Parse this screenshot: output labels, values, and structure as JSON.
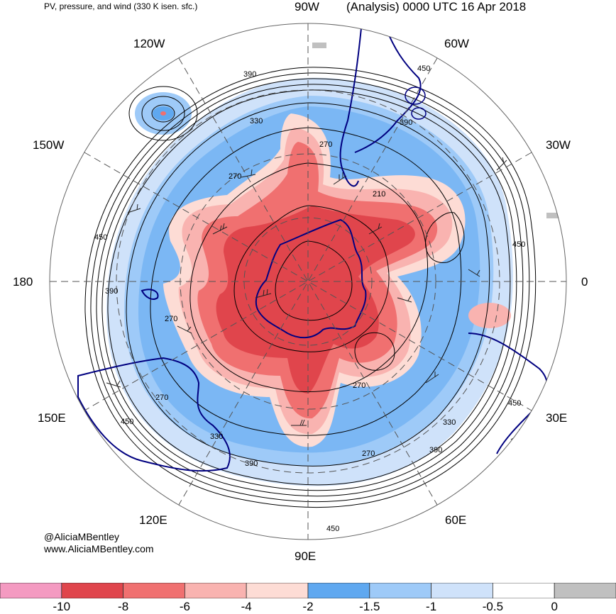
{
  "header": {
    "left_title": "PV, pressure, and wind (330 K isen. sfc.)",
    "right_title": "(Analysis) 0000 UTC 16 Apr 2018"
  },
  "longitude_labels": [
    "90W",
    "60W",
    "30W",
    "0",
    "30E",
    "60E",
    "90E",
    "120E",
    "150E",
    "180",
    "150W",
    "120W"
  ],
  "contour_labels": [
    "450",
    "390",
    "330",
    "270",
    "270",
    "210",
    "450",
    "450",
    "390",
    "270",
    "270",
    "450",
    "330",
    "390",
    "270",
    "330",
    "390",
    "450",
    "450",
    "390",
    "270"
  ],
  "credits": {
    "handle": "@AliciaMBentley",
    "website": "www.AliciaMBentley.com"
  },
  "colorbar": {
    "tick_labels": [
      "-10",
      "-8",
      "-6",
      "-4",
      "-2",
      "-1.5",
      "-1",
      "-0.5",
      "0"
    ],
    "colors": [
      "#f49ac1",
      "#e0454c",
      "#f07070",
      "#f9b3b0",
      "#fddcd5",
      "#5fa8f0",
      "#9ecaf8",
      "#cfe2fa",
      "#ffffff",
      "#c0c0c0"
    ]
  },
  "palette": {
    "pv_strong": "#e0454c",
    "pv_mid": "#f07070",
    "pv_light": "#f9b3b0",
    "pv_faint": "#fddcd5",
    "blue_strong": "#5fa8f0",
    "blue_mid": "#9ecaf8",
    "blue_light": "#cfe2fa",
    "coast": "#000080",
    "grid": "#555555"
  }
}
